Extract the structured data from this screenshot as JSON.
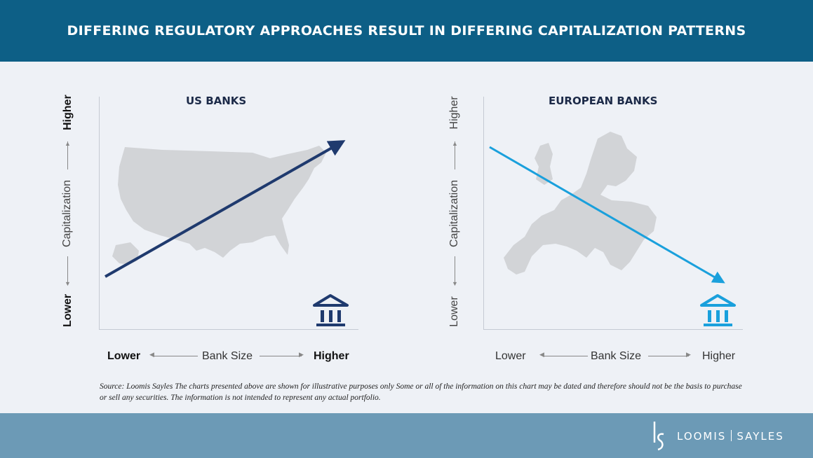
{
  "header": {
    "title": "DIFFERING REGULATORY APPROACHES RESULT IN DIFFERING CAPITALIZATION PATTERNS"
  },
  "panels": [
    {
      "title": "US BANKS",
      "y_higher": "Higher",
      "y_label": "Capitalization",
      "y_lower": "Lower",
      "x_lower": "Lower",
      "x_label": "Bank Size",
      "x_higher": "Higher",
      "trend": "up",
      "color": "#1f3a6e",
      "icon": "bank-building-icon"
    },
    {
      "title": "EUROPEAN BANKS",
      "y_higher": "Higher",
      "y_label": "Capitalization",
      "y_lower": "Lower",
      "x_lower": "Lower",
      "x_label": "Bank Size",
      "x_higher": "Higher",
      "trend": "down",
      "color": "#1aa0dc",
      "icon": "bank-building-icon"
    }
  ],
  "footnote": "Source: Loomis Sayles  The charts presented above are shown for illustrative purposes only  Some or all of the information on this chart may be dated  and  therefore  should not be the basis to purchase or sell any securities. The information is not intended to represent any actual portfolio.",
  "footer": {
    "logo_left": "LOOMIS",
    "logo_right": "SAYLES"
  }
}
